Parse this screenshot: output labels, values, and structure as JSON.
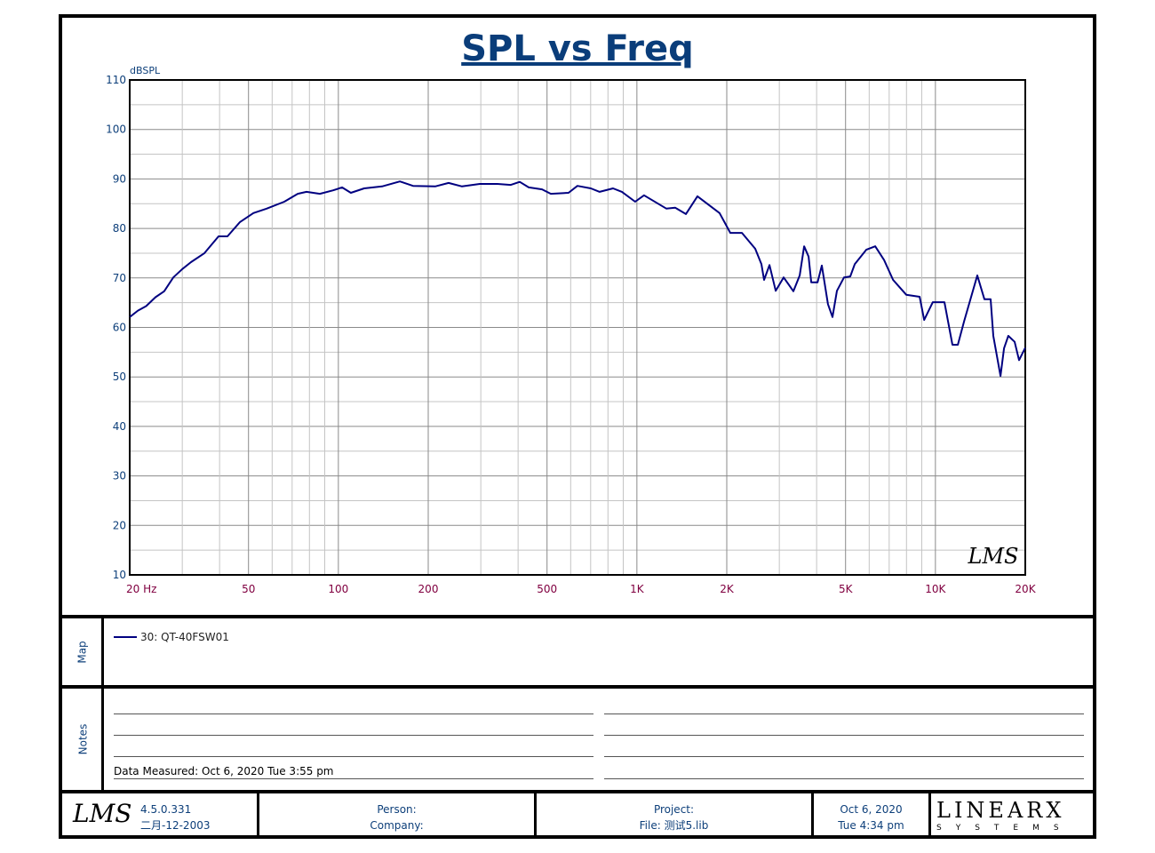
{
  "header": {
    "title": "SPL vs Freq"
  },
  "chart_data": {
    "type": "line",
    "title": "SPL vs Freq",
    "xlabel": "Hz",
    "ylabel": "dBSPL",
    "xscale": "log",
    "xlim": [
      20,
      20000
    ],
    "ylim": [
      10,
      110
    ],
    "grid": true,
    "yticks": [
      110,
      100,
      90,
      80,
      70,
      60,
      50,
      40,
      30,
      20,
      10
    ],
    "xticks": [
      {
        "v": 20,
        "label": "20  Hz"
      },
      {
        "v": 50,
        "label": "50"
      },
      {
        "v": 100,
        "label": "100"
      },
      {
        "v": 200,
        "label": "200"
      },
      {
        "v": 500,
        "label": "500"
      },
      {
        "v": 1000,
        "label": "1K"
      },
      {
        "v": 2000,
        "label": "2K"
      },
      {
        "v": 5000,
        "label": "5K"
      },
      {
        "v": 10000,
        "label": "10K"
      },
      {
        "v": 20000,
        "label": "20K"
      }
    ],
    "series": [
      {
        "name": "30: QT-40FSW01",
        "color": "#000080",
        "x": [
          20,
          21.3,
          22.7,
          24.4,
          26.1,
          28,
          30,
          32.1,
          35.6,
          39.7,
          42.5,
          46.8,
          51.9,
          57.5,
          65.9,
          73.1,
          78.2,
          86.7,
          96.1,
          102.9,
          110.1,
          122,
          140,
          160.7,
          177.9,
          211,
          234,
          259.5,
          297.6,
          341,
          378,
          405,
          434,
          481,
          515,
          590,
          632,
          701,
          750,
          832,
          891,
          987,
          1057,
          1256,
          1343,
          1459,
          1595,
          1892,
          2056,
          2249,
          2490,
          2613,
          2667,
          2780,
          2917,
          3100,
          3344,
          3510,
          3634,
          3760,
          3838,
          4028,
          4163,
          4366,
          4520,
          4678,
          4943,
          5185,
          5368,
          5866,
          6287,
          6732,
          7213,
          7985,
          8856,
          9167,
          9800,
          10150,
          10720,
          11400,
          11885,
          12470,
          13810,
          14590,
          15310,
          15630,
          16520,
          16980,
          17550,
          18420,
          19060,
          20000
        ],
        "y": [
          62.1,
          63.4,
          64.3,
          66.1,
          67.3,
          70.1,
          71.8,
          73.2,
          75,
          78.4,
          78.4,
          81.3,
          83.1,
          84,
          85.4,
          87,
          87.4,
          87,
          87.7,
          88.3,
          87.2,
          88.1,
          88.5,
          89.5,
          88.6,
          88.5,
          89.2,
          88.5,
          89,
          89,
          88.8,
          89.4,
          88.3,
          87.9,
          87,
          87.2,
          88.6,
          88.1,
          87.4,
          88.1,
          87.4,
          85.4,
          86.7,
          84,
          84.2,
          82.9,
          86.5,
          83.1,
          79.1,
          79.1,
          75.9,
          72.8,
          69.6,
          72.6,
          67.4,
          70.1,
          67.3,
          70.5,
          76.4,
          74.3,
          69.1,
          69.1,
          72.5,
          64.7,
          62.1,
          67.4,
          70.1,
          70.3,
          72.8,
          75.7,
          76.4,
          73.6,
          69.6,
          66.6,
          66.2,
          61.5,
          65.1,
          65.1,
          65.1,
          56.5,
          56.5,
          61.2,
          70.5,
          65.7,
          65.7,
          58.3,
          50.2,
          55.8,
          58.3,
          57.1,
          53.4,
          55.9
        ]
      }
    ]
  },
  "chart_logo": "LMS",
  "map": {
    "label": "Map",
    "legend": "30: QT-40FSW01"
  },
  "notes": {
    "label": "Notes",
    "measured": "Data Measured: Oct  6, 2020  Tue  3:55 pm"
  },
  "footer": {
    "logo": "LMS",
    "version": "4.5.0.331",
    "build_date": "二月-12-2003",
    "person": "Person:",
    "company": "Company:",
    "project": "Project:",
    "file": "File: 测试5.lib",
    "date": "Oct  6, 2020",
    "time": "Tue  4:34 pm",
    "brand": "LINEARX",
    "brand_sub": "SYSTEMS"
  }
}
